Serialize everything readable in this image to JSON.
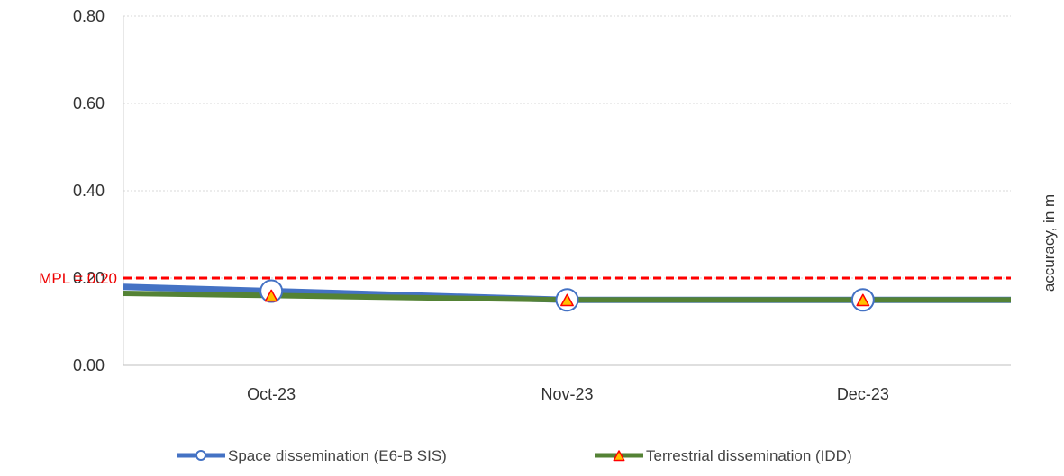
{
  "chart_data": {
    "type": "line",
    "categories": [
      "Oct-23",
      "Nov-23",
      "Dec-23"
    ],
    "series": [
      {
        "name": "Space dissemination (E6-B SIS)",
        "values": [
          0.17,
          0.15,
          0.15
        ],
        "color": "#4472c4",
        "marker": "circle"
      },
      {
        "name": "Terrestrial dissemination (IDD)",
        "values": [
          0.16,
          0.15,
          0.15
        ],
        "color": "#548235",
        "marker": "triangle",
        "marker_fill": "#ffc000",
        "marker_stroke": "#ff0000"
      }
    ],
    "threshold": {
      "label": "MPL = 0.20",
      "value": 0.2,
      "color": "#ff0000",
      "style": "dashed"
    },
    "ylabel": "accuracy, in m",
    "ylabel_position": "right",
    "y_ticks": [
      "0.00",
      "0.20",
      "0.40",
      "0.60",
      "0.80"
    ],
    "ylim": [
      0,
      0.8
    ],
    "grid": true,
    "legend_position": "bottom"
  }
}
